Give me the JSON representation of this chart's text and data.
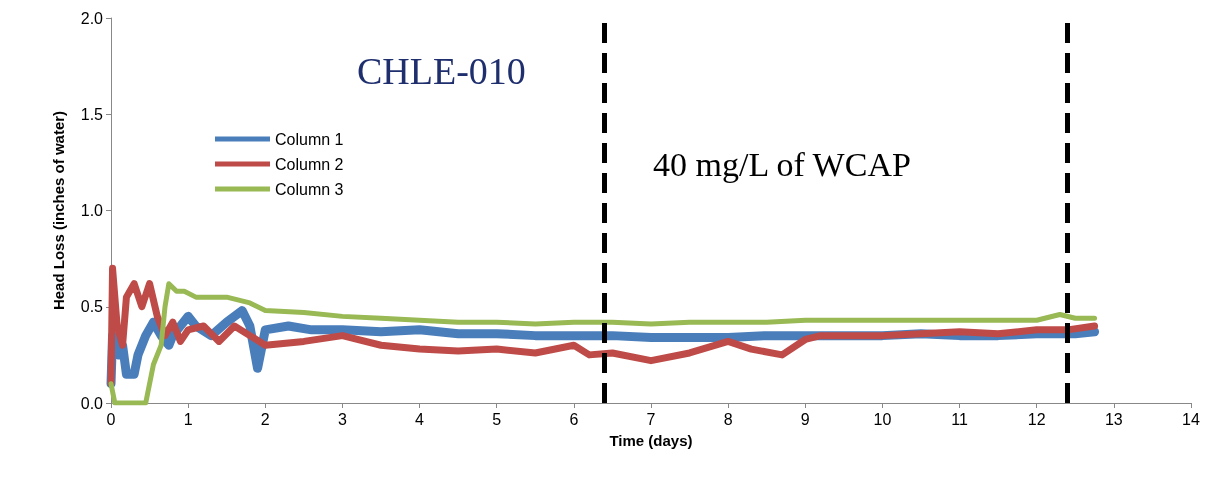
{
  "chart_data": {
    "type": "line",
    "xlabel": "Time (days)",
    "ylabel": "Head Loss (inches of water)",
    "annotations": [
      "CHLE-010",
      "40 mg/L of WCAP"
    ],
    "xlim": [
      0,
      14
    ],
    "xticks": [
      0,
      1,
      2,
      3,
      4,
      5,
      6,
      7,
      8,
      9,
      10,
      11,
      12,
      13,
      14
    ],
    "ylim": [
      0,
      2
    ],
    "yticks": [
      {
        "value": 0,
        "label": "0.0"
      },
      {
        "value": 0.5,
        "label": "0.5"
      },
      {
        "value": 1,
        "label": "1.0"
      },
      {
        "value": 1.5,
        "label": "1.5"
      },
      {
        "value": 2,
        "label": "2.0"
      }
    ],
    "grid": false,
    "legend": "top left",
    "marker": "none",
    "line_style": "solid",
    "ref_lines": [
      {
        "axis": "x",
        "value": 6.4,
        "color": "#000000",
        "line_style": "dashed"
      },
      {
        "axis": "x",
        "value": 12.4,
        "color": "#000000",
        "line_style": "dashed"
      }
    ],
    "series": [
      {
        "name": "Column 1",
        "color": "#4a7ebb",
        "x": [
          0,
          0.02,
          0.1,
          0.15,
          0.2,
          0.3,
          0.35,
          0.45,
          0.55,
          0.65,
          0.75,
          0.8,
          0.9,
          1.0,
          1.1,
          1.3,
          1.5,
          1.7,
          1.8,
          1.9,
          2.0,
          2.3,
          2.6,
          3,
          3.5,
          4,
          4.5,
          5,
          5.5,
          6,
          6.5,
          7,
          7.5,
          8,
          8.5,
          9,
          9.5,
          10,
          10.5,
          11,
          11.5,
          12,
          12.5,
          12.75
        ],
        "values": [
          0.1,
          0.35,
          0.25,
          0.3,
          0.15,
          0.15,
          0.25,
          0.35,
          0.42,
          0.35,
          0.3,
          0.35,
          0.4,
          0.45,
          0.4,
          0.35,
          0.42,
          0.48,
          0.4,
          0.18,
          0.38,
          0.4,
          0.38,
          0.38,
          0.37,
          0.38,
          0.36,
          0.36,
          0.35,
          0.35,
          0.35,
          0.34,
          0.34,
          0.34,
          0.35,
          0.35,
          0.35,
          0.35,
          0.36,
          0.35,
          0.35,
          0.36,
          0.36,
          0.37
        ]
      },
      {
        "name": "Column 2",
        "color": "#be4b48",
        "x": [
          0,
          0.02,
          0.08,
          0.15,
          0.2,
          0.3,
          0.4,
          0.5,
          0.6,
          0.7,
          0.8,
          0.9,
          1.0,
          1.2,
          1.4,
          1.6,
          1.8,
          2,
          2.5,
          3,
          3.5,
          4,
          4.5,
          5,
          5.5,
          6,
          6.2,
          6.5,
          7,
          7.5,
          8,
          8.3,
          8.7,
          9,
          9.2,
          10,
          10.5,
          11,
          11.5,
          12,
          12.4,
          12.75
        ],
        "values": [
          0.1,
          0.7,
          0.4,
          0.3,
          0.55,
          0.62,
          0.5,
          0.62,
          0.45,
          0.35,
          0.42,
          0.32,
          0.38,
          0.4,
          0.32,
          0.4,
          0.35,
          0.3,
          0.32,
          0.35,
          0.3,
          0.28,
          0.27,
          0.28,
          0.26,
          0.3,
          0.25,
          0.26,
          0.22,
          0.26,
          0.32,
          0.28,
          0.25,
          0.33,
          0.35,
          0.35,
          0.36,
          0.37,
          0.36,
          0.38,
          0.38,
          0.4
        ]
      },
      {
        "name": "Column 3",
        "color": "#98b954",
        "x": [
          0,
          0.05,
          0.45,
          0.55,
          0.65,
          0.7,
          0.75,
          0.85,
          0.95,
          1.1,
          1.5,
          1.8,
          2.0,
          2.5,
          3,
          3.5,
          4,
          4.5,
          5,
          5.5,
          6,
          6.5,
          7,
          7.5,
          8,
          8.5,
          9,
          10,
          11,
          12,
          12.3,
          12.5,
          12.75
        ],
        "values": [
          0.1,
          0,
          0,
          0.2,
          0.3,
          0.5,
          0.62,
          0.58,
          0.58,
          0.55,
          0.55,
          0.52,
          0.48,
          0.47,
          0.45,
          0.44,
          0.43,
          0.42,
          0.42,
          0.41,
          0.42,
          0.42,
          0.41,
          0.42,
          0.42,
          0.42,
          0.43,
          0.43,
          0.43,
          0.43,
          0.46,
          0.44,
          0.44
        ]
      }
    ]
  }
}
